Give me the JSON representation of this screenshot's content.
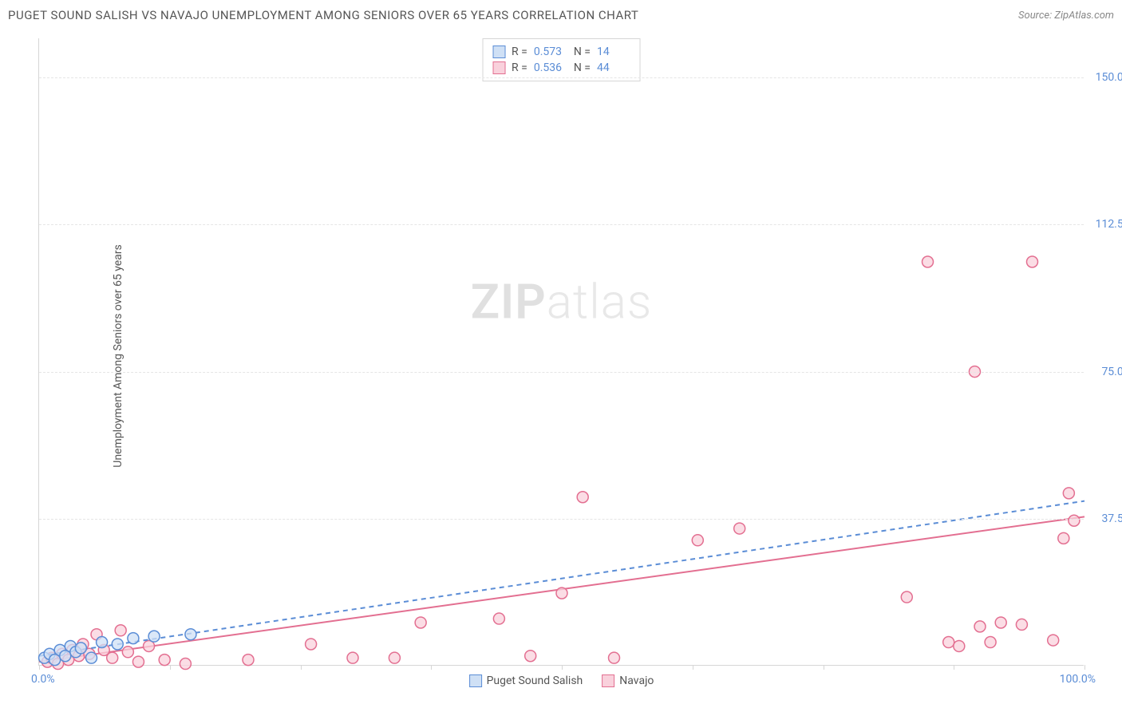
{
  "title": "PUGET SOUND SALISH VS NAVAJO UNEMPLOYMENT AMONG SENIORS OVER 65 YEARS CORRELATION CHART",
  "source": "Source: ZipAtlas.com",
  "ylabel": "Unemployment Among Seniors over 65 years",
  "watermark_bold": "ZIP",
  "watermark_light": "atlas",
  "chart": {
    "type": "scatter",
    "xlim": [
      0,
      100
    ],
    "ylim": [
      0,
      160
    ],
    "xticks": [
      0,
      12.5,
      25,
      37.5,
      50,
      62.5,
      75,
      87.5,
      100
    ],
    "yticks": [
      37.5,
      75.0,
      112.5,
      150.0
    ],
    "ytick_labels": [
      "37.5%",
      "75.0%",
      "112.5%",
      "150.0%"
    ],
    "xlabel_min": "0.0%",
    "xlabel_max": "100.0%",
    "background_color": "#ffffff",
    "grid_color": "#e5e5e5",
    "axis_color": "#d6d6d6",
    "tick_label_color": "#5b8dd6",
    "marker_radius": 7,
    "marker_stroke_width": 1.5,
    "line_width": 2,
    "series": [
      {
        "name": "Puget Sound Salish",
        "color_fill": "#cfe0f5",
        "color_stroke": "#5b8dd6",
        "line_dash": "6 5",
        "R": "0.573",
        "N": "14",
        "points": [
          [
            0.5,
            2.0
          ],
          [
            1.0,
            3.0
          ],
          [
            1.5,
            1.5
          ],
          [
            2.0,
            4.0
          ],
          [
            2.5,
            2.5
          ],
          [
            3.0,
            5.0
          ],
          [
            3.5,
            3.5
          ],
          [
            4.0,
            4.5
          ],
          [
            5.0,
            2.0
          ],
          [
            6.0,
            6.0
          ],
          [
            7.5,
            5.5
          ],
          [
            9.0,
            7.0
          ],
          [
            11.0,
            7.5
          ],
          [
            14.5,
            8.0
          ]
        ],
        "reg_line": {
          "x1": 0,
          "y1": 2.5,
          "x2": 100,
          "y2": 42.0
        }
      },
      {
        "name": "Navajo",
        "color_fill": "#f9d1dc",
        "color_stroke": "#e36f91",
        "line_dash": "",
        "R": "0.536",
        "N": "44",
        "points": [
          [
            0.8,
            1.0
          ],
          [
            1.2,
            2.0
          ],
          [
            1.8,
            0.5
          ],
          [
            2.2,
            3.0
          ],
          [
            2.8,
            1.5
          ],
          [
            3.2,
            4.0
          ],
          [
            3.8,
            2.5
          ],
          [
            4.2,
            5.5
          ],
          [
            4.8,
            3.0
          ],
          [
            5.5,
            8.0
          ],
          [
            6.2,
            4.0
          ],
          [
            7.0,
            2.0
          ],
          [
            7.8,
            9.0
          ],
          [
            8.5,
            3.5
          ],
          [
            9.5,
            1.0
          ],
          [
            10.5,
            5.0
          ],
          [
            12.0,
            1.5
          ],
          [
            14.0,
            0.5
          ],
          [
            20.0,
            1.5
          ],
          [
            26.0,
            5.5
          ],
          [
            30.0,
            2.0
          ],
          [
            34.0,
            2.0
          ],
          [
            36.5,
            11.0
          ],
          [
            44.0,
            12.0
          ],
          [
            47.0,
            2.5
          ],
          [
            50.0,
            18.5
          ],
          [
            52.0,
            43.0
          ],
          [
            55.0,
            2.0
          ],
          [
            63.0,
            32.0
          ],
          [
            67.0,
            35.0
          ],
          [
            83.0,
            17.5
          ],
          [
            85.0,
            103.0
          ],
          [
            87.0,
            6.0
          ],
          [
            88.0,
            5.0
          ],
          [
            89.5,
            75.0
          ],
          [
            90.0,
            10.0
          ],
          [
            91.0,
            6.0
          ],
          [
            92.0,
            11.0
          ],
          [
            94.0,
            10.5
          ],
          [
            95.0,
            103.0
          ],
          [
            97.0,
            6.5
          ],
          [
            98.0,
            32.5
          ],
          [
            98.5,
            44.0
          ],
          [
            99.0,
            37.0
          ]
        ],
        "reg_line": {
          "x1": 0,
          "y1": 1.0,
          "x2": 100,
          "y2": 38.0
        }
      }
    ]
  },
  "stats_labels": {
    "R": "R =",
    "N": "N ="
  },
  "legend_labels": [
    "Puget Sound Salish",
    "Navajo"
  ]
}
